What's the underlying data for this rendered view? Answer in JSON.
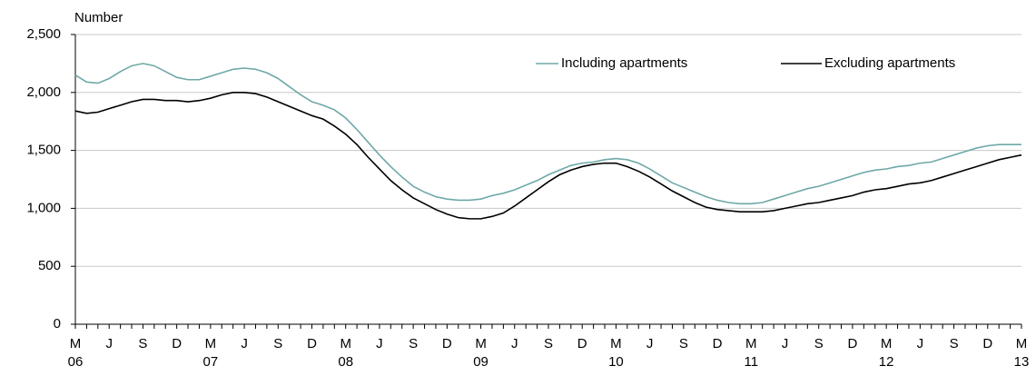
{
  "chart_data": {
    "type": "line",
    "y_label": "Number",
    "categories": [
      "M",
      null,
      null,
      "J",
      null,
      null,
      "S",
      null,
      null,
      "D",
      null,
      null,
      "M",
      null,
      null,
      "J",
      null,
      null,
      "S",
      null,
      null,
      "D",
      null,
      null,
      "M",
      null,
      null,
      "J",
      null,
      null,
      "S",
      null,
      null,
      "D",
      null,
      null,
      "M",
      null,
      null,
      "J",
      null,
      null,
      "S",
      null,
      null,
      "D",
      null,
      null,
      "M",
      null,
      null,
      "J",
      null,
      null,
      "S",
      null,
      null,
      "D",
      null,
      null,
      "M",
      null,
      null,
      "J",
      null,
      null,
      "S",
      null,
      null,
      "D",
      null,
      null,
      "M",
      null,
      null,
      "J",
      null,
      null,
      "S",
      null,
      null,
      "D",
      null,
      null,
      "M"
    ],
    "category_years": [
      "06",
      null,
      null,
      null,
      null,
      null,
      null,
      null,
      null,
      null,
      null,
      null,
      "07",
      null,
      null,
      null,
      null,
      null,
      null,
      null,
      null,
      null,
      null,
      null,
      "08",
      null,
      null,
      null,
      null,
      null,
      null,
      null,
      null,
      null,
      null,
      null,
      "09",
      null,
      null,
      null,
      null,
      null,
      null,
      null,
      null,
      null,
      null,
      null,
      "10",
      null,
      null,
      null,
      null,
      null,
      null,
      null,
      null,
      null,
      null,
      null,
      "11",
      null,
      null,
      null,
      null,
      null,
      null,
      null,
      null,
      null,
      null,
      null,
      "12",
      null,
      null,
      null,
      null,
      null,
      null,
      null,
      null,
      null,
      null,
      null,
      "13"
    ],
    "series": [
      {
        "name": "Including apartments",
        "color": "#6fa8a8",
        "values": [
          2150,
          2090,
          2080,
          2120,
          2180,
          2230,
          2250,
          2230,
          2180,
          2130,
          2110,
          2110,
          2140,
          2170,
          2200,
          2210,
          2200,
          2170,
          2120,
          2050,
          1980,
          1920,
          1890,
          1850,
          1780,
          1680,
          1570,
          1460,
          1360,
          1270,
          1190,
          1140,
          1100,
          1080,
          1070,
          1070,
          1080,
          1110,
          1130,
          1160,
          1200,
          1240,
          1290,
          1330,
          1370,
          1390,
          1400,
          1420,
          1430,
          1420,
          1390,
          1340,
          1280,
          1220,
          1180,
          1140,
          1100,
          1070,
          1050,
          1040,
          1040,
          1050,
          1080,
          1110,
          1140,
          1170,
          1190,
          1220,
          1250,
          1280,
          1310,
          1330,
          1340,
          1360,
          1370,
          1390,
          1400,
          1430,
          1460,
          1490,
          1520,
          1540,
          1550,
          1550,
          1550
        ]
      },
      {
        "name": "Excluding apartments",
        "color": "#000000",
        "values": [
          1840,
          1820,
          1830,
          1860,
          1890,
          1920,
          1940,
          1940,
          1930,
          1930,
          1920,
          1930,
          1950,
          1980,
          2000,
          2000,
          1990,
          1960,
          1920,
          1880,
          1840,
          1800,
          1770,
          1710,
          1640,
          1550,
          1440,
          1340,
          1240,
          1160,
          1090,
          1040,
          990,
          950,
          920,
          910,
          910,
          930,
          960,
          1020,
          1090,
          1160,
          1230,
          1290,
          1330,
          1360,
          1380,
          1390,
          1390,
          1360,
          1320,
          1270,
          1210,
          1150,
          1100,
          1050,
          1010,
          990,
          980,
          970,
          970,
          970,
          980,
          1000,
          1020,
          1040,
          1050,
          1070,
          1090,
          1110,
          1140,
          1160,
          1170,
          1190,
          1210,
          1220,
          1240,
          1270,
          1300,
          1330,
          1360,
          1390,
          1420,
          1440,
          1460
        ]
      }
    ],
    "ylim": [
      0,
      2500
    ],
    "yticks": [
      0,
      500,
      {
        "value": 1000,
        "label": "1,000"
      },
      {
        "value": 1500,
        "label": "1,500"
      },
      {
        "value": 2000,
        "label": "2,000"
      },
      {
        "value": 2500,
        "label": "2,500"
      }
    ],
    "grid": true
  }
}
